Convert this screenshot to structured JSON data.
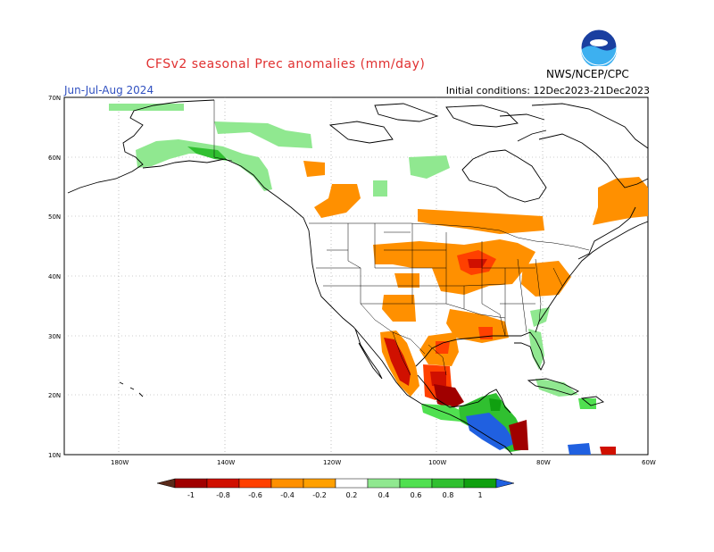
{
  "title": "CFSv2 seasonal Prec anomalies (mm/day)",
  "season": "Jun-Jul-Aug 2024",
  "initial_conditions": "Initial conditions: 12Dec2023-21Dec2023",
  "agency": "NWS/NCEP/CPC",
  "logo_icon": "noaa-logo-icon",
  "map": {
    "lon_range": [
      -190,
      -60
    ],
    "lat_range": [
      10,
      70
    ],
    "lat_ticks": [
      "10N",
      "20N",
      "30N",
      "40N",
      "50N",
      "60N",
      "70N"
    ],
    "lon_ticks": [
      "180W",
      "140W",
      "120W",
      "100W",
      "80W",
      "60W"
    ]
  },
  "colorbar": {
    "labels": [
      "-1",
      "-0.8",
      "-0.6",
      "-0.4",
      "-0.2",
      "0.2",
      "0.4",
      "0.6",
      "0.8",
      "1"
    ],
    "colors": [
      "#5a2a1a",
      "#a00000",
      "#d01000",
      "#ff4000",
      "#ff9000",
      "#ffa000",
      "#ffffff",
      "#90e890",
      "#50e050",
      "#30c030",
      "#10a010",
      "#2060e0"
    ]
  }
}
